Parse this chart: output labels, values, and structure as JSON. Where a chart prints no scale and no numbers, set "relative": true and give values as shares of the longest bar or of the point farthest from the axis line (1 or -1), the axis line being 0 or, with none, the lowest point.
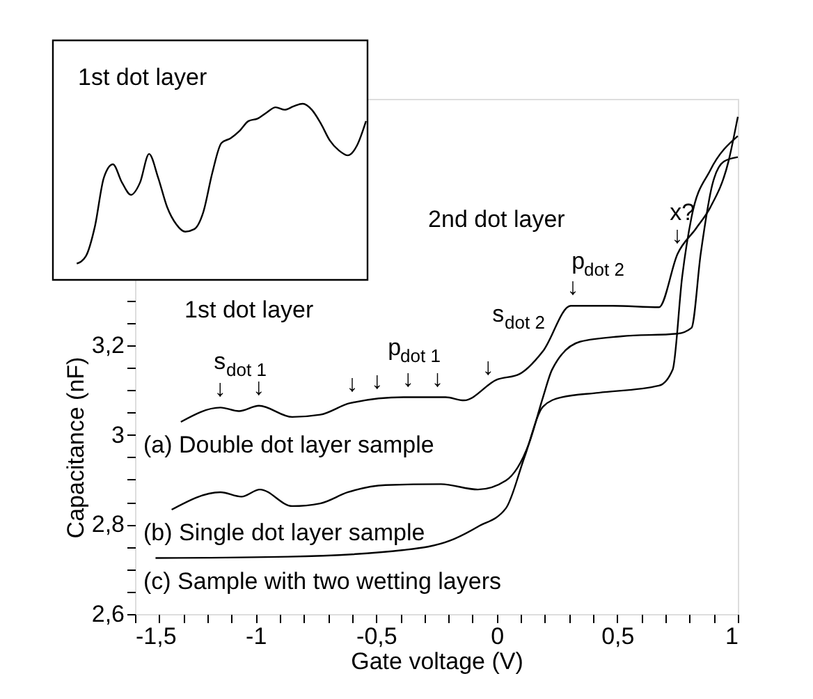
{
  "chart_data": [
    {
      "type": "line",
      "xlabel": "Gate voltage (V)",
      "ylabel": "Capacitance (nF)",
      "xlim": [
        -1.5,
        1
      ],
      "ylim": [
        2.6,
        3.75
      ],
      "xticks": [
        {
          "value": -1.5,
          "label": "-1,5"
        },
        {
          "value": -1.4,
          "label": null
        },
        {
          "value": -1.3,
          "label": null
        },
        {
          "value": -1.2,
          "label": null
        },
        {
          "value": -1.1,
          "label": null
        },
        -1,
        {
          "value": -0.9,
          "label": null
        },
        {
          "value": -0.8,
          "label": null
        },
        {
          "value": -0.7,
          "label": null
        },
        {
          "value": -0.6,
          "label": null
        },
        {
          "value": -0.5,
          "label": "-0,5"
        },
        {
          "value": -0.4,
          "label": null
        },
        {
          "value": -0.3,
          "label": null
        },
        {
          "value": -0.2,
          "label": null
        },
        {
          "value": -0.1,
          "label": null
        },
        0,
        {
          "value": 0.1,
          "label": null
        },
        {
          "value": 0.2,
          "label": null
        },
        {
          "value": 0.3,
          "label": null
        },
        {
          "value": 0.4,
          "label": null
        },
        {
          "value": 0.5,
          "label": "0,5"
        },
        {
          "value": 0.6,
          "label": null
        },
        {
          "value": 0.7,
          "label": null
        },
        {
          "value": 0.8,
          "label": null
        },
        {
          "value": 0.9,
          "label": null
        },
        1
      ],
      "yticks": [
        {
          "value": 2.6,
          "label": "2,6"
        },
        {
          "value": 2.65,
          "label": null
        },
        {
          "value": 2.7,
          "label": null
        },
        {
          "value": 2.75,
          "label": null
        },
        {
          "value": 2.8,
          "label": "2,8"
        },
        {
          "value": 2.85,
          "label": null
        },
        {
          "value": 2.9,
          "label": null
        },
        {
          "value": 2.95,
          "label": null
        },
        3,
        {
          "value": 3.05,
          "label": null
        },
        {
          "value": 3.1,
          "label": null
        },
        {
          "value": 3.15,
          "label": null
        },
        {
          "value": 3.2,
          "label": "3,2"
        },
        {
          "value": 3.25,
          "label": null
        },
        {
          "value": 3.3,
          "label": null
        },
        {
          "value": 3.35,
          "label": null
        },
        {
          "value": 3.4,
          "label": null
        },
        {
          "value": 3.45,
          "label": null
        },
        {
          "value": 3.5,
          "label": null
        },
        {
          "value": 3.55,
          "label": null
        },
        {
          "value": 3.6,
          "label": null
        },
        {
          "value": 3.65,
          "label": null
        },
        {
          "value": 3.7,
          "label": null
        }
      ],
      "grid": false,
      "legend": false,
      "series": [
        {
          "name": "(a) Double dot layer sample",
          "color": "#000000",
          "x": [
            -1.31,
            -1.146,
            -1.069,
            -0.986,
            -0.848,
            -0.732,
            -0.607,
            -0.386,
            -0.212,
            -0.136,
            0.0,
            0.095,
            0.192,
            0.307,
            0.48,
            0.673,
            0.75,
            0.827,
            0.885,
            0.961,
            1.0
          ],
          "values": [
            3.029,
            3.061,
            3.053,
            3.065,
            3.04,
            3.045,
            3.071,
            3.084,
            3.084,
            3.077,
            3.123,
            3.136,
            3.187,
            3.288,
            3.288,
            3.285,
            3.404,
            3.461,
            3.507,
            3.61,
            3.71
          ]
        },
        {
          "name": "(b) Single dot layer sample",
          "color": "#000000",
          "x": [
            -1.348,
            -1.146,
            -1.059,
            -0.982,
            -0.848,
            -0.732,
            -0.617,
            -0.462,
            -0.231,
            -0.078,
            0.038,
            0.134,
            0.192,
            0.23,
            0.346,
            0.519,
            0.75,
            0.808,
            0.846,
            0.894,
            0.942,
            1.0
          ],
          "values": [
            2.833,
            2.872,
            2.862,
            2.878,
            2.841,
            2.847,
            2.872,
            2.888,
            2.89,
            2.878,
            2.898,
            2.981,
            3.084,
            3.146,
            3.208,
            3.22,
            3.226,
            3.239,
            3.404,
            3.558,
            3.61,
            3.62
          ]
        },
        {
          "name": "(c) Sample with two wetting layers",
          "color": "#000000",
          "x": [
            -1.415,
            -0.867,
            -0.386,
            -0.193,
            -0.078,
            0.038,
            0.115,
            0.192,
            0.269,
            0.423,
            0.673,
            0.73,
            0.769,
            0.808,
            0.885,
            1.0
          ],
          "values": [
            2.725,
            2.728,
            2.743,
            2.764,
            2.795,
            2.836,
            2.95,
            3.063,
            3.084,
            3.094,
            3.11,
            3.146,
            3.352,
            3.486,
            3.59,
            3.667
          ]
        }
      ],
      "annotations": [
        "1st dot layer",
        "2nd dot layer",
        "s$_{dot 1}$",
        "p$_{dot 1}$",
        "s$_{dot 2}$",
        "p$_{dot 2}$",
        "x?",
        {
          "text": "↓",
          "x": -1.146,
          "y": 3.061
        },
        {
          "text": "↓",
          "x": -0.986,
          "y": 3.065
        },
        {
          "text": "↓",
          "x": -0.598,
          "y": 3.072
        },
        {
          "text": "↓",
          "x": -0.495,
          "y": 3.078
        },
        {
          "text": "↓",
          "x": -0.367,
          "y": 3.084
        },
        {
          "text": "↓",
          "x": -0.245,
          "y": 3.084
        },
        {
          "text": "↓",
          "x": -0.035,
          "y": 3.11
        },
        {
          "text": "↓",
          "x": 0.317,
          "y": 3.288
        },
        {
          "text": "↓",
          "x": 0.75,
          "y": 3.404
        }
      ]
    },
    {
      "type": "line",
      "relative": true,
      "categories": [
        null,
        null,
        null,
        null,
        null,
        null,
        null,
        null,
        null,
        null,
        null,
        null,
        null,
        null,
        null,
        null,
        null,
        null,
        null,
        null,
        null,
        null,
        null,
        null,
        null,
        null,
        null,
        null,
        null,
        null,
        null,
        null,
        null
      ],
      "series": [
        {
          "color": "#000000",
          "values": [
            0.092,
            0.134,
            0.302,
            0.581,
            0.656,
            0.553,
            0.483,
            0.553,
            0.715,
            0.581,
            0.413,
            0.316,
            0.274,
            0.288,
            0.385,
            0.609,
            0.777,
            0.804,
            0.846,
            0.902,
            0.916,
            0.95,
            0.98,
            0.966,
            0.986,
            1,
            0.966,
            0.888,
            0.791,
            0.735,
            0.707,
            0.763,
            0.902
          ]
        }
      ],
      "annotations": [
        "1st dot layer"
      ]
    }
  ]
}
